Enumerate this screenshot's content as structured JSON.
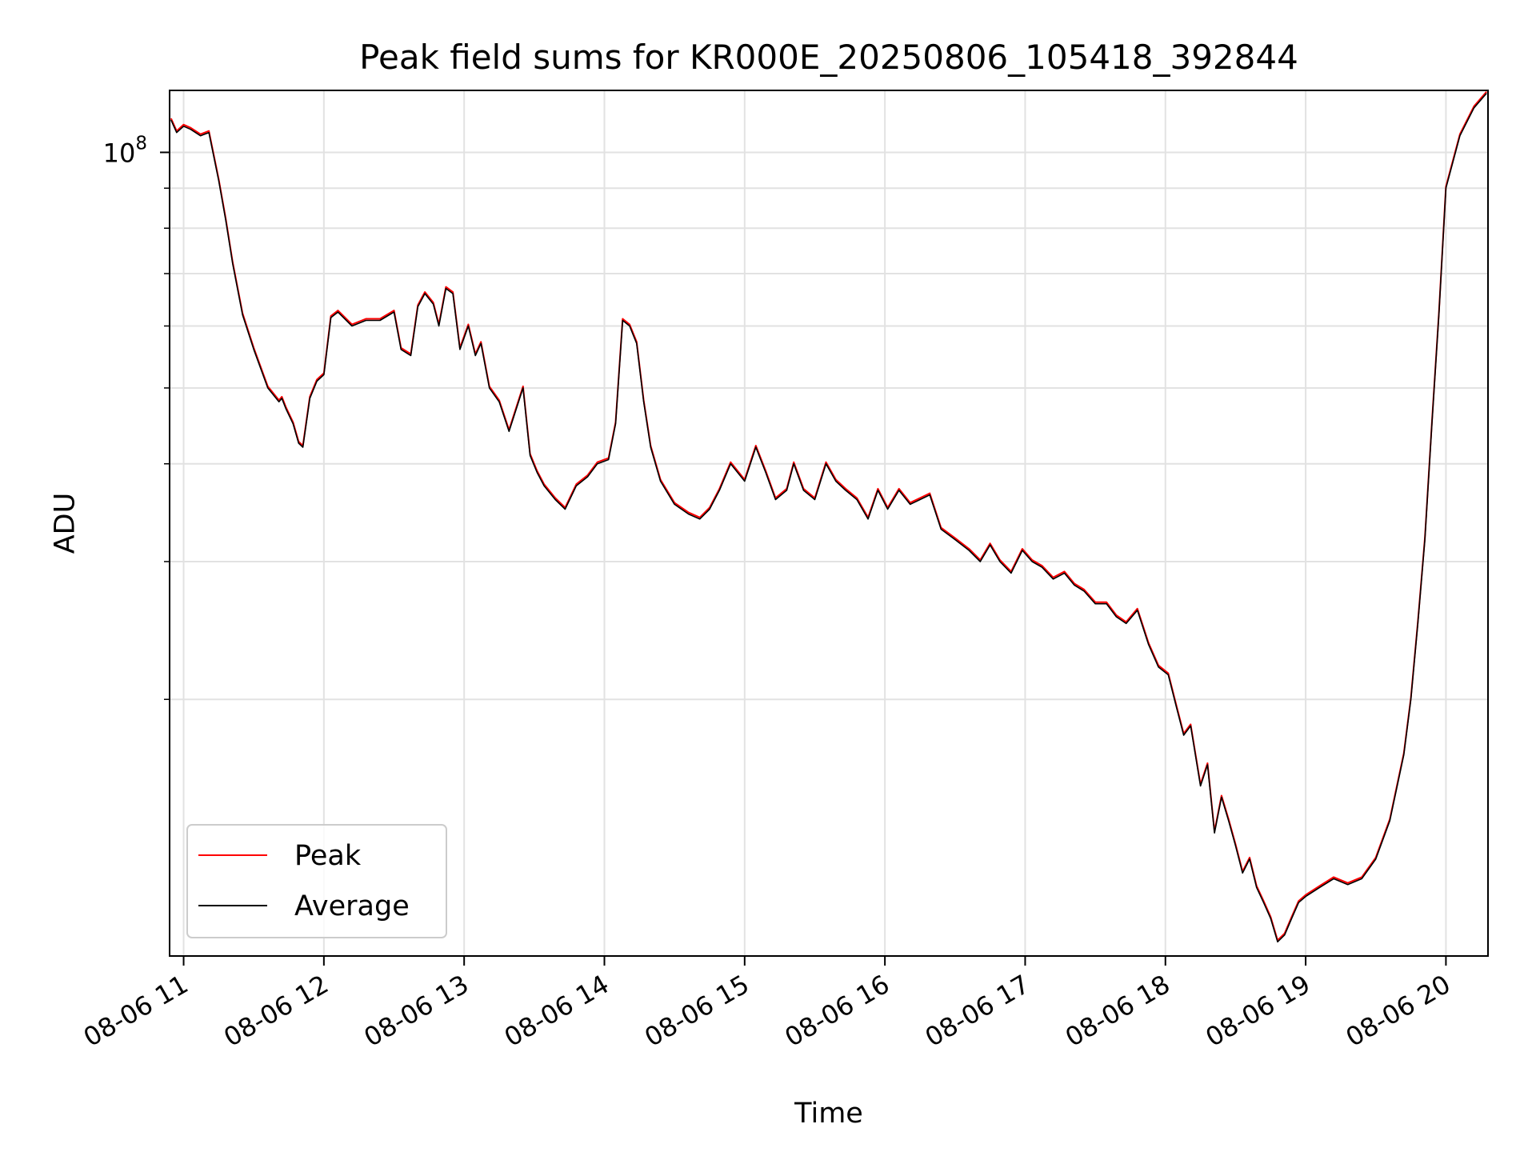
{
  "chart_data": {
    "type": "line",
    "title": "Peak field sums for KR000E_20250806_105418_392844",
    "xlabel": "Time",
    "ylabel": "ADU",
    "yscale": "log",
    "ylim": [
      9400000.0,
      120000000.0
    ],
    "xlim": [
      10.9,
      20.3
    ],
    "x_ticks": [
      11,
      12,
      13,
      14,
      15,
      16,
      17,
      18,
      19,
      20
    ],
    "x_tick_labels": [
      "08-06 11",
      "08-06 12",
      "08-06 13",
      "08-06 14",
      "08-06 15",
      "08-06 16",
      "08-06 17",
      "08-06 18",
      "08-06 19",
      "08-06 20"
    ],
    "y_major_ticks": [
      {
        "value": 100000000.0,
        "base": "10",
        "exp": "8"
      }
    ],
    "y_minor_ticks": [
      20000000.0,
      30000000.0,
      40000000.0,
      50000000.0,
      60000000.0,
      70000000.0,
      80000000.0,
      90000000.0
    ],
    "grid": true,
    "legend_position": "lower-left",
    "series": [
      {
        "name": "Peak",
        "color": "#ff0000"
      },
      {
        "name": "Average",
        "color": "#000000"
      }
    ],
    "x": [
      10.91,
      10.95,
      11.0,
      11.05,
      11.12,
      11.18,
      11.25,
      11.3,
      11.35,
      11.42,
      11.5,
      11.6,
      11.68,
      11.7,
      11.73,
      11.78,
      11.82,
      11.85,
      11.9,
      11.95,
      12.0,
      12.05,
      12.1,
      12.2,
      12.3,
      12.4,
      12.5,
      12.55,
      12.62,
      12.67,
      12.72,
      12.78,
      12.82,
      12.87,
      12.92,
      12.97,
      13.03,
      13.08,
      13.12,
      13.18,
      13.25,
      13.32,
      13.42,
      13.47,
      13.52,
      13.57,
      13.65,
      13.72,
      13.8,
      13.88,
      13.95,
      14.03,
      14.08,
      14.13,
      14.18,
      14.23,
      14.28,
      14.33,
      14.4,
      14.5,
      14.6,
      14.68,
      14.75,
      14.82,
      14.9,
      15.0,
      15.08,
      15.15,
      15.22,
      15.3,
      15.35,
      15.42,
      15.5,
      15.58,
      15.65,
      15.72,
      15.8,
      15.88,
      15.95,
      16.02,
      16.1,
      16.18,
      16.25,
      16.32,
      16.4,
      16.5,
      16.6,
      16.68,
      16.75,
      16.82,
      16.9,
      16.98,
      17.05,
      17.12,
      17.2,
      17.28,
      17.35,
      17.42,
      17.5,
      17.58,
      17.65,
      17.72,
      17.8,
      17.88,
      17.95,
      18.02,
      18.08,
      18.13,
      18.18,
      18.25,
      18.3,
      18.35,
      18.4,
      18.45,
      18.5,
      18.55,
      18.6,
      18.65,
      18.7,
      18.75,
      18.8,
      18.85,
      18.9,
      18.95,
      19.0,
      19.1,
      19.2,
      19.3,
      19.4,
      19.5,
      19.6,
      19.7,
      19.75,
      19.8,
      19.85,
      19.9,
      19.95,
      20.0,
      20.1,
      20.2,
      20.29
    ],
    "y": [
      110000000,
      106000000,
      108000000,
      107000000,
      105000000,
      106000000,
      92000000,
      82000000,
      72000000,
      62000000,
      56000000,
      50000000,
      48000000,
      48500000,
      47000000,
      45000000,
      42500000,
      42000000,
      48500000,
      51000000,
      52000000,
      61500000,
      62500000,
      60000000,
      61000000,
      61000000,
      62500000,
      56000000,
      55000000,
      63500000,
      66000000,
      64000000,
      60000000,
      67000000,
      66000000,
      56000000,
      60000000,
      55000000,
      57000000,
      50000000,
      48000000,
      44000000,
      50000000,
      41000000,
      39000000,
      37500000,
      36000000,
      35000000,
      37500000,
      38500000,
      40000000,
      40500000,
      45000000,
      61000000,
      60000000,
      57000000,
      48000000,
      42000000,
      38000000,
      35500000,
      34500000,
      34000000,
      35000000,
      37000000,
      40000000,
      38000000,
      42000000,
      39000000,
      36000000,
      37000000,
      40000000,
      37000000,
      36000000,
      40000000,
      38000000,
      37000000,
      36000000,
      34000000,
      37000000,
      35000000,
      37000000,
      35500000,
      36000000,
      36500000,
      33000000,
      32000000,
      31000000,
      30000000,
      31500000,
      30000000,
      29000000,
      31000000,
      30000000,
      29500000,
      28500000,
      29000000,
      28000000,
      27500000,
      26500000,
      26500000,
      25500000,
      25000000,
      26000000,
      23500000,
      22000000,
      21500000,
      19500000,
      18000000,
      18500000,
      15500000,
      16500000,
      13500000,
      15000000,
      14000000,
      13000000,
      12000000,
      12500000,
      11500000,
      11000000,
      10500000,
      9800000,
      10000000,
      10500000,
      11000000,
      11200000,
      11500000,
      11800000,
      11600000,
      11800000,
      12500000,
      14000000,
      17000000,
      20000000,
      25000000,
      32000000,
      45000000,
      62000000,
      90000000,
      105000000,
      114000000,
      119000000
    ]
  }
}
